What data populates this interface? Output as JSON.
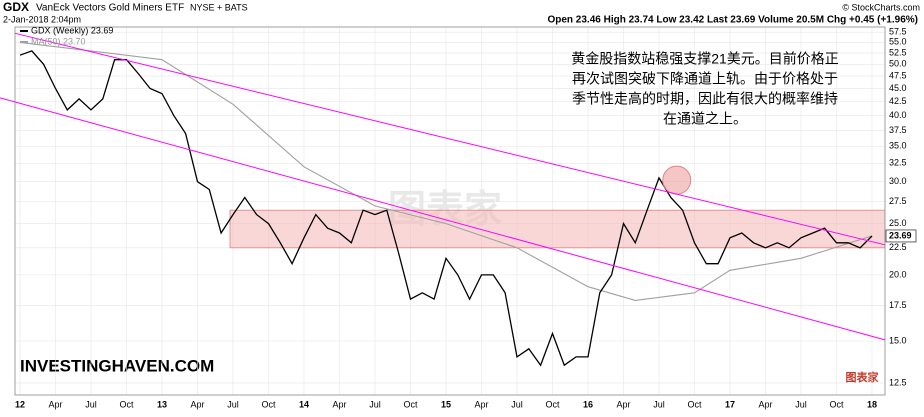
{
  "chart_data": {
    "type": "line",
    "symbol": "GDX",
    "title": "VanEck Vectors Gold Miners ETF",
    "exchange": "NYSE + BATS",
    "copyright": "© StockCharts.com",
    "date": "2-Jan-2018 2:04pm",
    "quote": "Open 23.46 High 23.74 Low 23.42 Last 23.69 Volume 20.5M Chg +0.45 (+1.96%)",
    "annotation": [
      "黄金股指数站稳强支撑21美元。目前价格正",
      "再次试图突破下降通道上轨。由于价格处于",
      "季节性走高的时期，因此有很大的概率维持",
      "在通道之上。"
    ],
    "brand": "INVESTINGHAVEN.COM",
    "watermark": "图表家",
    "log_y": true,
    "xlim": [
      -0.42,
      73.1
    ],
    "ylim": [
      11.86,
      58.8
    ],
    "xticks": [
      {
        "value": 0,
        "label": "12"
      },
      {
        "value": 3,
        "label": "Apr"
      },
      {
        "value": 6,
        "label": "Jul"
      },
      {
        "value": 9,
        "label": "Oct"
      },
      {
        "value": 12,
        "label": "13"
      },
      {
        "value": 15,
        "label": "Apr"
      },
      {
        "value": 18,
        "label": "Jul"
      },
      {
        "value": 21,
        "label": "Oct"
      },
      {
        "value": 24,
        "label": "14"
      },
      {
        "value": 27,
        "label": "Apr"
      },
      {
        "value": 30,
        "label": "Jul"
      },
      {
        "value": 33,
        "label": "Oct"
      },
      {
        "value": 36,
        "label": "15"
      },
      {
        "value": 39,
        "label": "Apr"
      },
      {
        "value": 42,
        "label": "Jul"
      },
      {
        "value": 45,
        "label": "Oct"
      },
      {
        "value": 48,
        "label": "16"
      },
      {
        "value": 51,
        "label": "Apr"
      },
      {
        "value": 54,
        "label": "Jul"
      },
      {
        "value": 57,
        "label": "Oct"
      },
      {
        "value": 60,
        "label": "17"
      },
      {
        "value": 63,
        "label": "Apr"
      },
      {
        "value": 66,
        "label": "Jul"
      },
      {
        "value": 69,
        "label": "Oct"
      },
      {
        "value": 72,
        "label": "18"
      }
    ],
    "yticks": [
      12.5,
      {
        "value": 15,
        "label": "15.0"
      },
      17.5,
      {
        "value": 20,
        "label": "20.0"
      },
      22.5,
      {
        "value": 25,
        "label": "25.0"
      },
      27.5,
      {
        "value": 30,
        "label": "30.0"
      },
      32.5,
      {
        "value": 35,
        "label": "35.0"
      },
      37.5,
      {
        "value": 40,
        "label": "40.0"
      },
      42.5,
      {
        "value": 45,
        "label": "45.0"
      },
      47.5,
      {
        "value": 50,
        "label": "50.0"
      },
      52.5,
      {
        "value": 55,
        "label": "55.0"
      },
      57.5
    ],
    "series": [
      {
        "name": "GDX (Weekly) 23.69",
        "color": "#000000",
        "x": [
          0,
          1,
          2,
          3,
          4,
          5,
          6,
          7,
          8,
          9,
          10,
          11,
          12,
          13,
          14,
          15,
          16,
          17,
          18,
          19,
          20,
          21,
          22,
          23,
          24,
          25,
          26,
          27,
          28,
          29,
          30,
          31,
          32,
          33,
          34,
          35,
          36,
          37,
          38,
          39,
          40,
          41,
          42,
          43,
          44,
          45,
          46,
          47,
          48,
          49,
          50,
          51,
          52,
          53,
          54,
          55,
          56,
          57,
          58,
          59,
          60,
          61,
          62,
          63,
          64,
          65,
          66,
          67,
          68,
          69,
          70,
          71,
          72
        ],
        "values": [
          52,
          53,
          50,
          45,
          41,
          43,
          41,
          43,
          51,
          51,
          48,
          45,
          44,
          40,
          37,
          30,
          29,
          24,
          26,
          28,
          26,
          25,
          23,
          21,
          23.5,
          26,
          24.5,
          24,
          23,
          26.5,
          26,
          26.5,
          22,
          18,
          18.5,
          18,
          21.5,
          20,
          18,
          20,
          20,
          18.5,
          14,
          14.5,
          13.5,
          15.5,
          13.5,
          14,
          14,
          18.5,
          20,
          25,
          23,
          26.5,
          30.5,
          28,
          26.5,
          23,
          21,
          21,
          23.5,
          24,
          23,
          22.5,
          23,
          22.5,
          23.5,
          24,
          24.5,
          23,
          23,
          22.5,
          23.69
        ]
      },
      {
        "name": "MA(50) 23.70",
        "color": "#a0a0a0",
        "x": [
          0,
          6,
          12,
          18,
          24,
          30,
          36,
          42,
          48,
          52,
          57,
          60,
          66,
          72
        ],
        "values": [
          55,
          53,
          51,
          42,
          32,
          27,
          25,
          22.5,
          19,
          17.9,
          18.5,
          20.4,
          21.5,
          23.7
        ]
      }
    ],
    "trendlines": [
      {
        "color": "#ff00ff",
        "x": [
          -0.42,
          73.1
        ],
        "values": [
          57.2,
          22.8
        ]
      },
      {
        "color": "#ff00ff",
        "x": [
          -1.69,
          73.1
        ],
        "values": [
          43.2,
          15.07
        ]
      }
    ],
    "band": {
      "color": "#f4b6b6",
      "x": [
        17.75,
        73.1
      ],
      "values": [
        22.5,
        26.5
      ]
    },
    "highlight": {
      "color": "#e88080",
      "x": 55.5,
      "value": 30.2
    }
  }
}
